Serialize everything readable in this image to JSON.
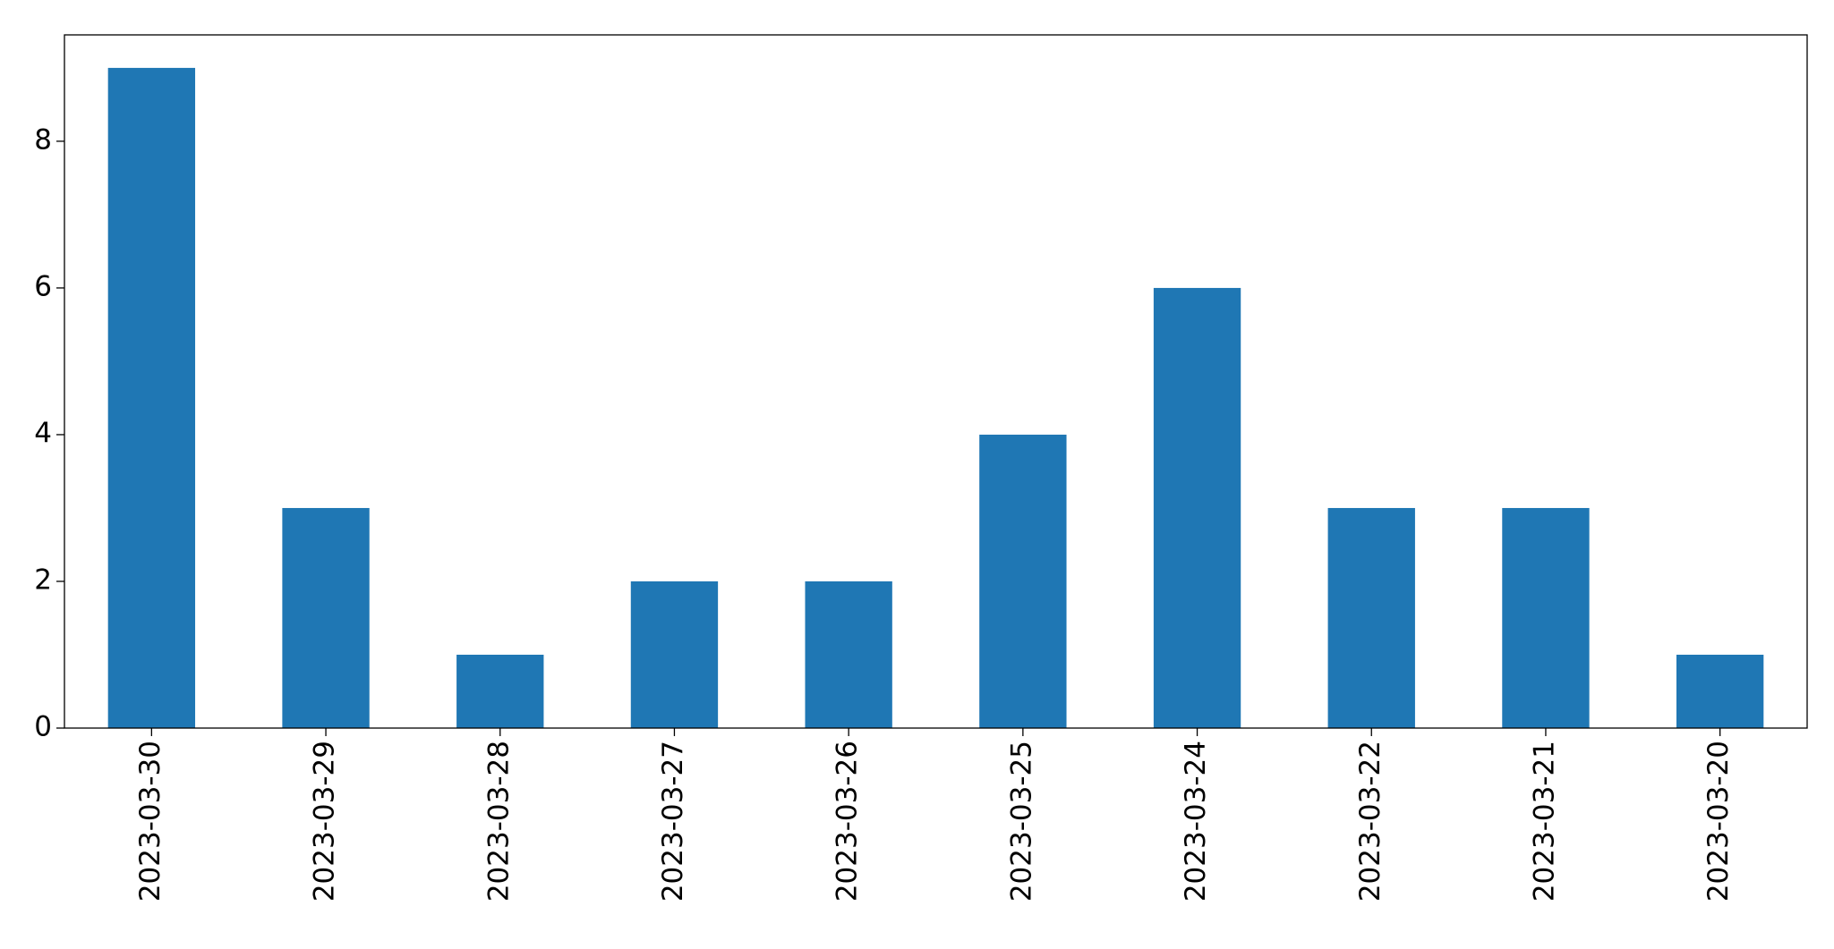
{
  "chart_data": {
    "type": "bar",
    "categories": [
      "2023-03-30",
      "2023-03-29",
      "2023-03-28",
      "2023-03-27",
      "2023-03-26",
      "2023-03-25",
      "2023-03-24",
      "2023-03-22",
      "2023-03-21",
      "2023-03-20"
    ],
    "values": [
      9,
      3,
      1,
      2,
      2,
      4,
      6,
      3,
      3,
      1
    ],
    "color": "#1f77b4",
    "ylim": [
      0,
      9.45
    ],
    "yticks": [
      0,
      2,
      4,
      6,
      8
    ],
    "grid": false
  }
}
